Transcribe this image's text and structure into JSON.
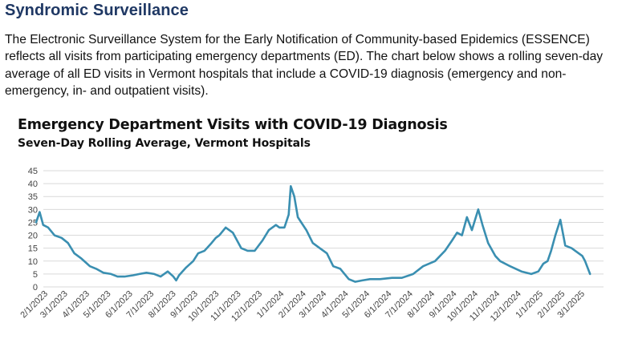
{
  "page": {
    "heading": "Syndromic Surveillance",
    "intro": "The Electronic Surveillance System for the Early Notification of Community-based Epidemics (ESSENCE) reflects all visits from participating emergency departments (ED). The chart below shows a rolling seven-day average of all ED visits in Vermont hospitals that include a COVID-19 diagnosis (emergency and non-emergency, in- and outpatient visits)."
  },
  "colors": {
    "line": "#3a8fb1",
    "grid": "#d9d9d9",
    "heading": "#1f3864"
  },
  "chart_data": {
    "type": "line",
    "title": "Emergency Department Visits with COVID-19 Diagnosis",
    "subtitle": "Seven-Day Rolling Average, Vermont Hospitals",
    "xlabel": "",
    "ylabel": "",
    "ylim": [
      0,
      45
    ],
    "y_ticks": [
      "0",
      "5",
      "10",
      "15",
      "20",
      "25",
      "30",
      "35",
      "40",
      "45"
    ],
    "grid": "horizontal",
    "legend": "none",
    "x_ticks": [
      "2/1/2023",
      "3/1/2023",
      "4/1/2023",
      "5/1/2023",
      "6/1/2023",
      "7/1/2023",
      "8/1/2023",
      "9/1/2023",
      "10/1/2023",
      "11/1/2023",
      "12/1/2023",
      "1/1/2024",
      "2/1/2024",
      "3/1/2024",
      "4/1/2024",
      "5/1/2024",
      "6/1/2024",
      "7/1/2024",
      "8/1/2024",
      "9/1/2024",
      "10/1/2024",
      "11/1/2024",
      "12/1/2024",
      "1/1/2025",
      "2/1/2025",
      "3/1/2025"
    ],
    "series": [
      {
        "x": [
          "1/15/2023",
          "1/20/2023",
          "1/25/2023",
          "2/1/2023",
          "2/10/2023",
          "2/20/2023",
          "3/1/2023",
          "3/10/2023",
          "3/20/2023",
          "3/28/2023",
          "4/1/2023",
          "4/10/2023",
          "4/20/2023",
          "5/1/2023",
          "5/10/2023",
          "5/20/2023",
          "6/1/2023",
          "6/10/2023",
          "6/20/2023",
          "7/1/2023",
          "7/10/2023",
          "7/20/2023",
          "7/28/2023",
          "8/1/2023",
          "8/5/2023",
          "8/15/2023",
          "8/25/2023",
          "9/1/2023",
          "9/10/2023",
          "9/20/2023",
          "9/26/2023",
          "10/1/2023",
          "10/10/2023",
          "10/20/2023",
          "11/1/2023",
          "11/10/2023",
          "11/20/2023",
          "12/1/2023",
          "12/10/2023",
          "12/20/2023",
          "12/25/2023",
          "1/1/2024",
          "1/7/2024",
          "1/10/2024",
          "1/15/2024",
          "1/20/2024",
          "2/1/2024",
          "2/10/2024",
          "2/20/2024",
          "3/1/2024",
          "3/10/2024",
          "3/20/2024",
          "4/1/2024",
          "4/10/2024",
          "4/20/2024",
          "5/1/2024",
          "5/15/2024",
          "6/1/2024",
          "6/15/2024",
          "7/1/2024",
          "7/15/2024",
          "8/1/2024",
          "8/15/2024",
          "8/25/2024",
          "9/1/2024",
          "9/8/2024",
          "9/15/2024",
          "9/22/2024",
          "10/1/2024",
          "10/7/2024",
          "10/15/2024",
          "10/25/2024",
          "11/1/2024",
          "11/15/2024",
          "12/1/2024",
          "12/15/2024",
          "12/25/2024",
          "1/1/2025",
          "1/7/2025",
          "1/12/2025",
          "1/18/2025",
          "1/25/2025",
          "2/1/2025",
          "2/10/2025",
          "2/15/2025",
          "2/25/2025",
          "3/1/2025",
          "3/8/2025"
        ],
        "y": [
          25,
          29,
          24,
          23,
          20,
          19,
          17,
          13,
          11,
          9,
          8,
          7,
          5.5,
          5,
          4,
          4,
          4.5,
          5,
          5.5,
          5,
          4,
          6,
          4,
          2.5,
          4.5,
          7.5,
          10,
          13,
          14,
          17,
          19,
          20,
          23,
          21,
          15,
          14,
          14,
          18,
          22,
          24,
          23,
          23,
          28,
          39,
          35,
          27,
          22,
          17,
          15,
          13,
          8,
          7,
          3,
          2,
          2.5,
          3,
          3,
          3.5,
          3.5,
          5,
          8,
          10,
          14,
          18,
          21,
          20,
          27,
          22,
          30,
          24,
          17,
          12,
          10,
          8,
          6,
          5,
          6,
          9,
          10,
          14,
          20,
          26,
          16,
          15,
          14,
          12,
          10,
          5
        ]
      }
    ]
  }
}
